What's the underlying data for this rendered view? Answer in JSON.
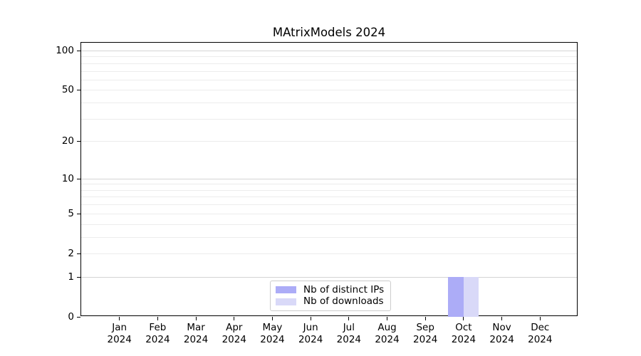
{
  "title": "MAtrixModels 2024",
  "style": {
    "axis_color": "#000000",
    "grid_major_color": "#d4d4d4",
    "grid_minor_color": "#ececec",
    "background_color": "#ffffff",
    "legend_border_color": "#cccccc"
  },
  "legend": {
    "entries": [
      {
        "label": "Nb of distinct IPs",
        "color": "#acacf7"
      },
      {
        "label": "Nb of downloads",
        "color": "#d9d9f8"
      }
    ]
  },
  "chart_data": {
    "type": "bar",
    "title": "MAtrixModels 2024",
    "categories": [
      "Jan",
      "Feb",
      "Mar",
      "Apr",
      "May",
      "Jun",
      "Jul",
      "Aug",
      "Sep",
      "Oct",
      "Nov",
      "Dec"
    ],
    "category_year": "2024",
    "series": [
      {
        "name": "Nb of distinct IPs",
        "color": "#acacf7",
        "values": [
          0,
          0,
          0,
          0,
          0,
          0,
          0,
          0,
          0,
          1,
          0,
          0
        ]
      },
      {
        "name": "Nb of downloads",
        "color": "#d9d9f8",
        "values": [
          0,
          0,
          0,
          0,
          0,
          0,
          0,
          0,
          0,
          1,
          0,
          0
        ]
      }
    ],
    "xlabel": "",
    "ylabel": "",
    "yscale": "log10(1+x)",
    "ylim": [
      0,
      115
    ],
    "yticks": [
      0,
      1,
      2,
      5,
      10,
      20,
      50,
      100
    ],
    "major_gridlines": [
      1,
      10,
      100
    ],
    "minor_gridlines": [
      2,
      3,
      4,
      5,
      6,
      7,
      8,
      9,
      20,
      30,
      40,
      50,
      60,
      70,
      80,
      90
    ],
    "grid": true,
    "legend_position": "bottom-center"
  }
}
